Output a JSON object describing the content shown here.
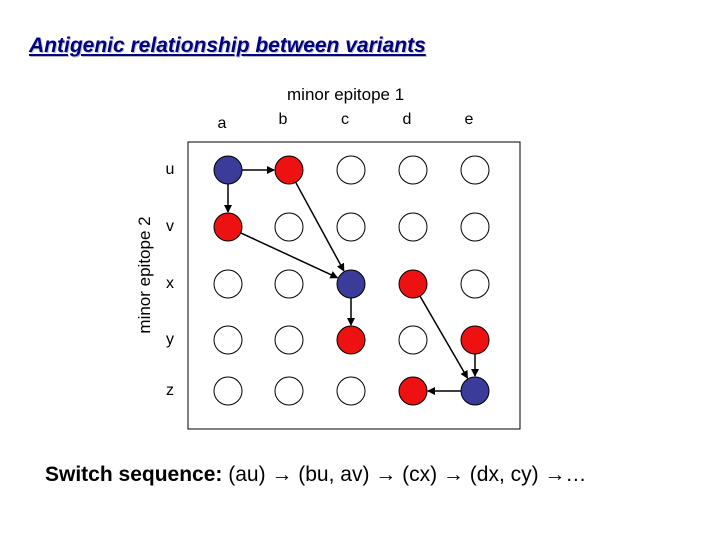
{
  "title": "Antigenic relationship between variants",
  "axis_x_title": "minor epitope 1",
  "axis_y_title": "minor epitope 2",
  "columns": [
    "a",
    "b",
    "c",
    "d",
    "e"
  ],
  "rows": [
    "u",
    "v",
    "x",
    "y",
    "z"
  ],
  "colors": {
    "blue": "#3b3b9a",
    "red": "#ee1111",
    "empty": "#ffffff",
    "stroke": "#000000"
  },
  "nodes": [
    [
      "blue",
      "red",
      "empty",
      "empty",
      "empty"
    ],
    [
      "red",
      "empty",
      "empty",
      "empty",
      "empty"
    ],
    [
      "empty",
      "empty",
      "blue",
      "red",
      "empty"
    ],
    [
      "empty",
      "empty",
      "red",
      "empty",
      "red"
    ],
    [
      "empty",
      "empty",
      "empty",
      "red",
      "blue"
    ]
  ],
  "arrows": [
    {
      "from": [
        "a",
        "u"
      ],
      "to": [
        "b",
        "u"
      ]
    },
    {
      "from": [
        "a",
        "u"
      ],
      "to": [
        "a",
        "v"
      ]
    },
    {
      "from": [
        "b",
        "u"
      ],
      "to": [
        "c",
        "x"
      ]
    },
    {
      "from": [
        "a",
        "v"
      ],
      "to": [
        "c",
        "x"
      ]
    },
    {
      "from": [
        "c",
        "x"
      ],
      "to": [
        "c",
        "y"
      ]
    },
    {
      "from": [
        "d",
        "x"
      ],
      "to": [
        "e",
        "z"
      ]
    },
    {
      "from": [
        "e",
        "y"
      ],
      "to": [
        "e",
        "z"
      ]
    },
    {
      "from": [
        "e",
        "z"
      ],
      "to": [
        "d",
        "z"
      ]
    }
  ],
  "caption": {
    "lead": "Switch sequence:",
    "sequence": "(au) → (bu, av) → (cx) → (dx, cy) →…"
  }
}
